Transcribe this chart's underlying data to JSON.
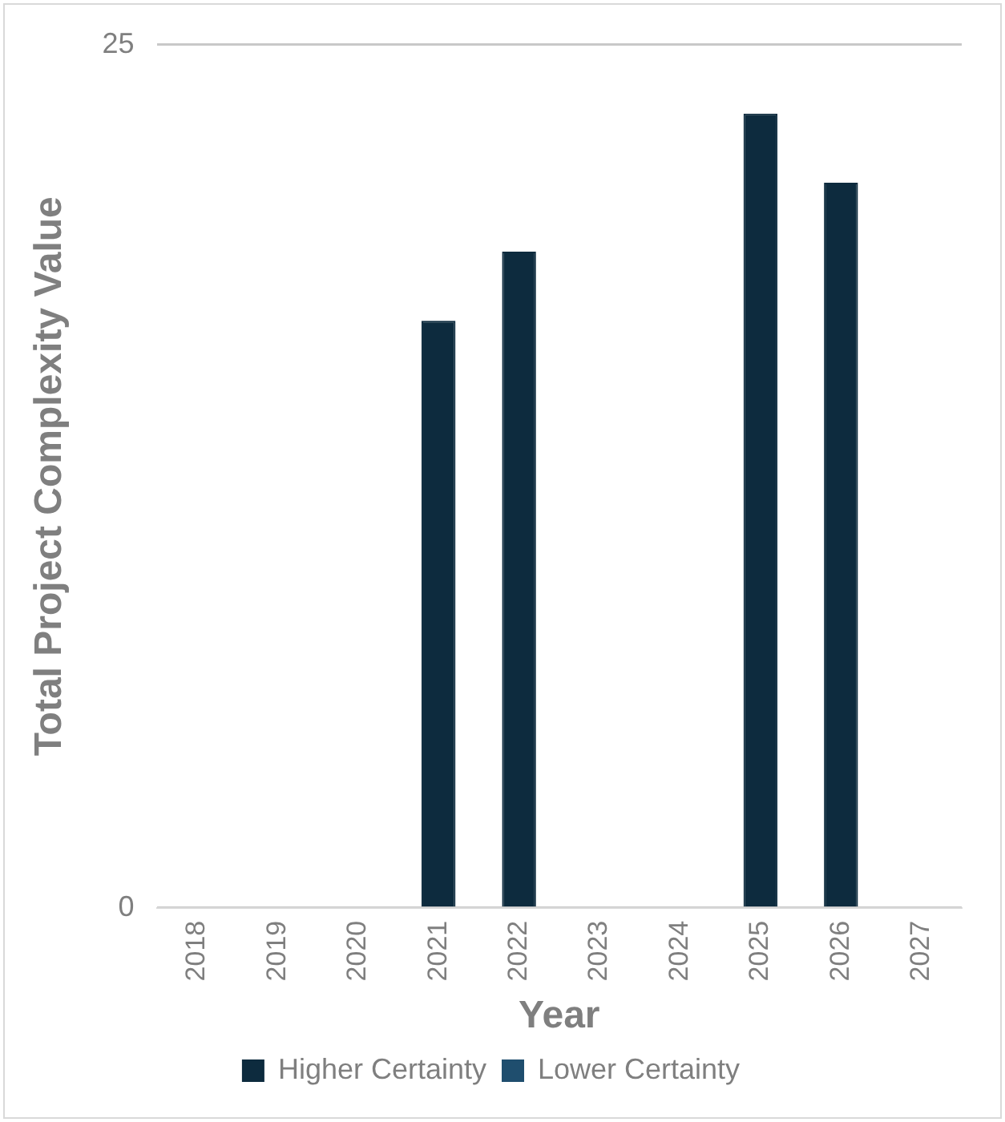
{
  "chart_data": {
    "type": "bar",
    "xlabel": "Year",
    "ylabel": "Total Project Complexity Value",
    "categories": [
      "2018",
      "2019",
      "2020",
      "2021",
      "2022",
      "2023",
      "2024",
      "2025",
      "2026",
      "2027"
    ],
    "series": [
      {
        "name": "Higher Certainty",
        "color": "#0d2b3e",
        "values": [
          null,
          null,
          null,
          17,
          19,
          null,
          null,
          23,
          21,
          null
        ]
      },
      {
        "name": "Lower Certainty",
        "color": "#1f4e6e",
        "values": [
          null,
          null,
          null,
          null,
          null,
          null,
          null,
          null,
          null,
          null
        ]
      }
    ],
    "ylim": [
      0,
      25
    ],
    "yticks": [
      0,
      25
    ],
    "grid": "y",
    "legend": "bottom"
  }
}
